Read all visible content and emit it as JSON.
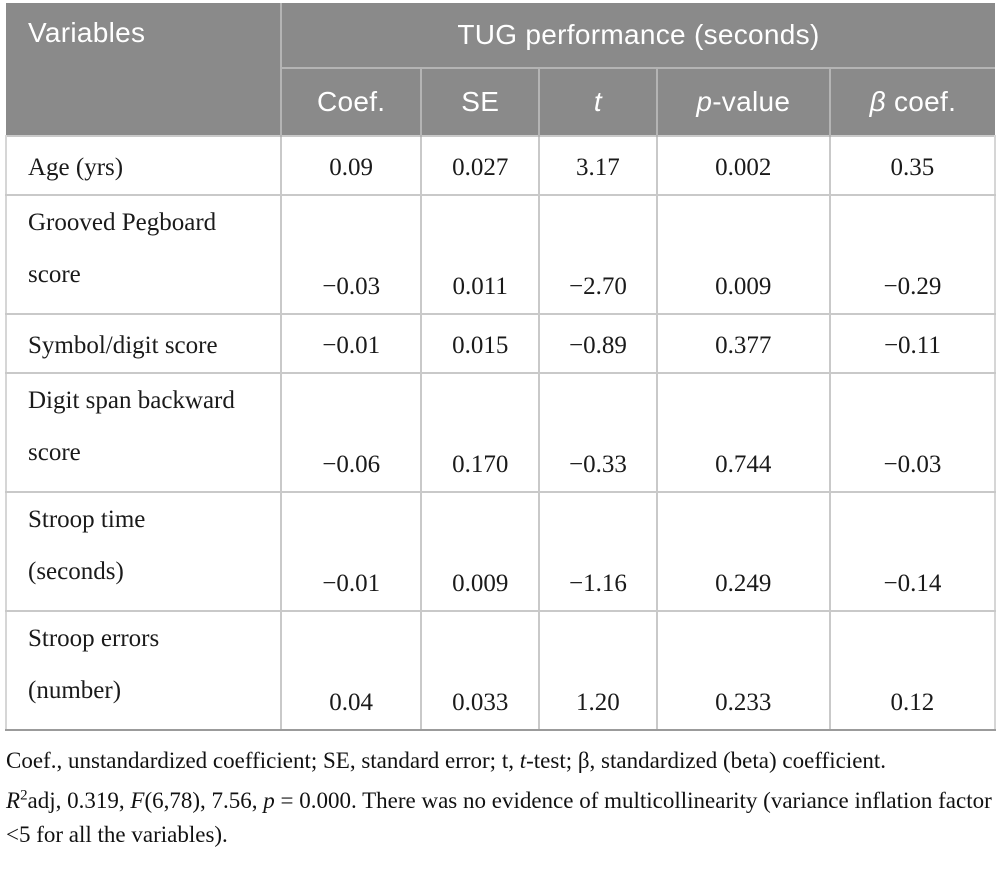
{
  "table": {
    "col1_header": "Variables",
    "span_header": "TUG performance (seconds)",
    "sub_headers": [
      {
        "key": "coef",
        "segments": [
          {
            "t": "Coef."
          }
        ]
      },
      {
        "key": "se",
        "segments": [
          {
            "t": "SE"
          }
        ]
      },
      {
        "key": "t",
        "segments": [
          {
            "t": "t",
            "i": true
          }
        ]
      },
      {
        "key": "p-value",
        "segments": [
          {
            "t": "p",
            "i": true
          },
          {
            "t": "-value"
          }
        ]
      },
      {
        "key": "beta-coef",
        "segments": [
          {
            "t": "β",
            "i": true
          },
          {
            "t": " coef."
          }
        ]
      }
    ],
    "rows": [
      {
        "label_lines": [
          "Age (yrs)"
        ],
        "values": [
          "0.09",
          "0.027",
          "3.17",
          "0.002",
          "0.35"
        ]
      },
      {
        "label_lines": [
          "Grooved Pegboard",
          "score"
        ],
        "values": [
          "−0.03",
          "0.011",
          "−2.70",
          "0.009",
          "−0.29"
        ]
      },
      {
        "label_lines": [
          "Symbol/digit score"
        ],
        "values": [
          "−0.01",
          "0.015",
          "−0.89",
          "0.377",
          "−0.11"
        ]
      },
      {
        "label_lines": [
          "Digit span backward",
          "score"
        ],
        "values": [
          "−0.06",
          "0.170",
          "−0.33",
          "0.744",
          "−0.03"
        ]
      },
      {
        "label_lines": [
          "Stroop time",
          "(seconds)"
        ],
        "values": [
          "−0.01",
          "0.009",
          "−1.16",
          "0.249",
          "−0.14"
        ]
      },
      {
        "label_lines": [
          "Stroop errors",
          "(number)"
        ],
        "values": [
          "0.04",
          "0.033",
          "1.20",
          "0.233",
          "0.12"
        ]
      }
    ]
  },
  "footnotes": [
    {
      "segments": [
        {
          "t": "Coef., unstandardized coefficient; SE, standard error; t, "
        },
        {
          "t": "t",
          "i": true
        },
        {
          "t": "-test; β, standardized (beta) coefficient."
        }
      ]
    },
    {
      "segments": [
        {
          "t": "R",
          "i": true
        },
        {
          "t": "2",
          "sup": true
        },
        {
          "t": "adj, 0.319, "
        },
        {
          "t": "F",
          "i": true
        },
        {
          "t": "(6,78), 7.56, "
        },
        {
          "t": "p",
          "i": true
        },
        {
          "t": " = 0.000. There was no evidence of multicollinearity (variance inflation factor <5 for all the variables)."
        }
      ]
    }
  ],
  "colors": {
    "header_bg": "#8a8a8a",
    "header_text": "#ffffff",
    "header_separator": "#b4b4b4",
    "grid_line": "#c9c9c9",
    "bottom_border": "#9b9b9b",
    "body_text": "#1a1a1a"
  }
}
